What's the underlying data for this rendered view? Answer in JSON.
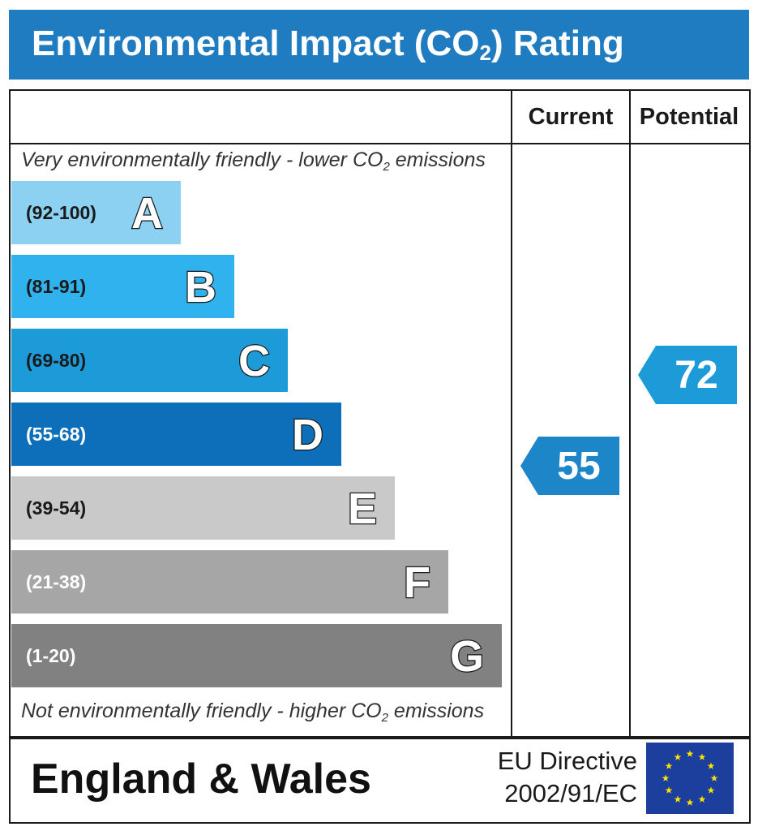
{
  "header": {
    "title_pre": "Environmental Impact (CO",
    "title_sub": "2",
    "title_post": ") Rating"
  },
  "columns": {
    "current": "Current",
    "potential": "Potential"
  },
  "notes": {
    "top_pre": "Very environmentally friendly - lower CO",
    "top_sub": "2",
    "top_post": " emissions",
    "bottom_pre": "Not environmentally friendly - higher CO",
    "bottom_sub": "2",
    "bottom_post": " emissions"
  },
  "chart_data": {
    "type": "bar",
    "title": "Environmental Impact (CO2) Rating",
    "categories": [
      "A",
      "B",
      "C",
      "D",
      "E",
      "F",
      "G"
    ],
    "ranges": [
      "(92-100)",
      "(81-91)",
      "(69-80)",
      "(55-68)",
      "(39-54)",
      "(21-38)",
      "(1-20)"
    ],
    "range_min": [
      92,
      81,
      69,
      55,
      39,
      21,
      1
    ],
    "range_max": [
      100,
      91,
      80,
      68,
      54,
      38,
      20
    ],
    "colors": [
      "#8dd1f2",
      "#2fb2ee",
      "#1d9bd9",
      "#0d6fba",
      "#c9c9c9",
      "#a6a6a6",
      "#818181"
    ],
    "range_text_colors": [
      "#1a1a1a",
      "#1a1a1a",
      "#1a1a1a",
      "#ffffff",
      "#1a1a1a",
      "#ffffff",
      "#ffffff"
    ],
    "current": {
      "value": 55,
      "band": "D",
      "color": "#1d86c8"
    },
    "potential": {
      "value": 72,
      "band": "C",
      "color": "#1d9bd9"
    }
  },
  "footer": {
    "country": "England & Wales",
    "directive_line1": "EU Directive",
    "directive_line2": "2002/91/EC",
    "flag_color": "#1c3f9e",
    "star_color": "#ffe100"
  }
}
